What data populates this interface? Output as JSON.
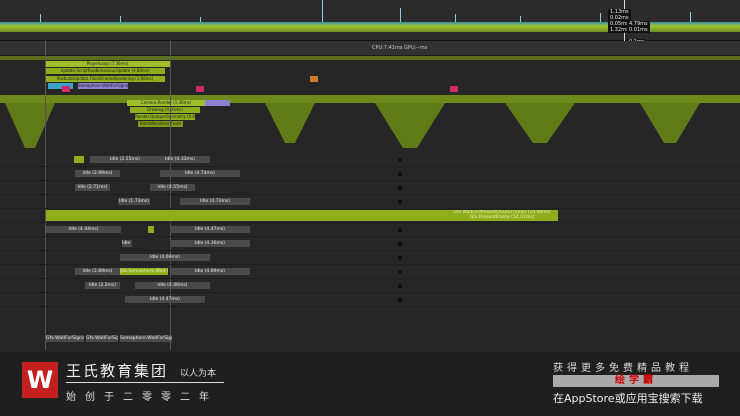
{
  "graph": {
    "tooltips_left": [
      "1.13ms",
      "0.02ms",
      "0.05ms",
      "1.32ms"
    ],
    "tooltips_right": [
      "4.79ms",
      "0.01ms",
      "0.1ms"
    ]
  },
  "header": {
    "cpu_label": "CPU:7.41ms  GPU:--ms"
  },
  "flame": {
    "main": "PlayerLoop (7.36ms)",
    "update": "Update.ScriptRunBehaviourUpdate (4.80ms)",
    "render": "PostLateUpdate.FinishFrameRendering (1.66ms)",
    "semaphore": "Semaphore.WaitForSignal",
    "camera": "Camera.Render (1.36ms)",
    "drawing": "Drawing (0.91ms)",
    "render_ops": "Render.OpaqueGeometry (0.62ms)",
    "batch": "BatchRenderer.Flush"
  },
  "rows": [
    {
      "bars": [
        "Idle (2.55ms)",
        "Idle (4.33ms)"
      ]
    },
    {
      "bars": [
        "Idle (2.99ms)",
        "Idle (4.74ms)"
      ]
    },
    {
      "bars": [
        "Idle (2.71ms)",
        "Idle (4.55ms)"
      ]
    },
    {
      "bars": [
        "Idle (1.73ms)",
        "Idle (4.72ms)"
      ]
    },
    {
      "bars": [
        "Gfx.WaitForPresentOnGfxThread (14.08ms)",
        "Gfx.PresentFrame (14.07ms)"
      ]
    },
    {
      "bars": [
        "Idle (4.44ms)",
        "Idle (4.47ms)"
      ]
    },
    {
      "bars": [
        "Idle (1.67ms)",
        "Idle (4.36ms)"
      ]
    },
    {
      "bars": [
        "Idle (4.69ms)"
      ]
    },
    {
      "bars": [
        "Idle (2.89ms)",
        "Job.Semaphore.Wait (1.47ms)",
        "Idle (4.89ms)"
      ]
    },
    {
      "bars": [
        "Idle (2.2ms)",
        "Idle (4.46ms)"
      ]
    },
    {
      "bars": [
        "Idle (4.47ms)"
      ]
    }
  ],
  "bottom_row": [
    "Gfx.WaitForSignal",
    "Gfx.WaitForSignal",
    "Semaphore.WaitForSignal (2.90)"
  ],
  "watermark": {
    "logo": "W",
    "brand": "王氏教育集团",
    "slogan": "以人为本",
    "since": "始创于二零零二年",
    "promo_line1": "获得更多免费精品教程",
    "promo_app": "绘学霸",
    "promo_line3": "在AppStore或应用宝搜索下载"
  }
}
